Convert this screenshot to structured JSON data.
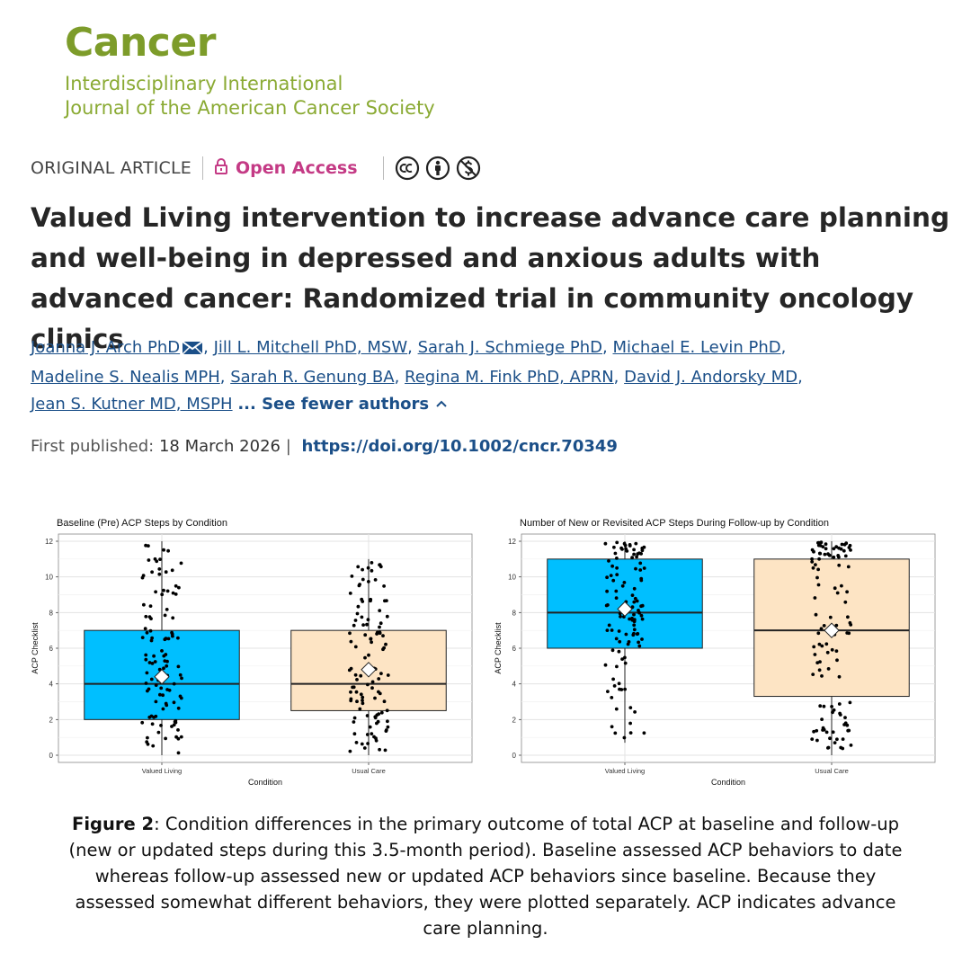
{
  "journal": {
    "name": "Cancer",
    "subtitle_line1": "Interdisciplinary International",
    "subtitle_line2": "Journal of the American Cancer Society"
  },
  "article_meta": {
    "type": "ORIGINAL ARTICLE",
    "access": "Open Access",
    "license_icons": [
      "cc-icon",
      "attribution-icon",
      "noncommercial-icon"
    ]
  },
  "article": {
    "title": "Valued Living intervention to increase advance care planning and well-being in depressed and anxious adults with advanced cancer: Randomized trial in community oncology clinics",
    "authors": [
      "Joanna J. Arch PhD",
      "Jill L. Mitchell PhD, MSW",
      "Sarah J. Schmiege PhD",
      "Michael E. Levin PhD",
      "Madeline S. Nealis MPH",
      "Sarah R. Genung BA",
      "Regina M. Fink PhD, APRN",
      "David J. Andorsky MD",
      "Jean S. Kutner MD, MSPH"
    ],
    "see_fewer": "... See fewer authors",
    "first_published_label": "First published:",
    "first_published_date": "18 March 2026",
    "doi": "https://doi.org/10.1002/cncr.70349"
  },
  "colors": {
    "journal_green": "#7d9c2a",
    "open_access": "#c43a85",
    "link_blue": "#1b4f88",
    "valued_living_box": "#00bfff",
    "usual_care_box": "#fde4c4"
  },
  "chart_data": [
    {
      "type": "box",
      "title": "Baseline (Pre) ACP Steps by Condition",
      "xlabel": "Condition",
      "ylabel": "ACP Checklist",
      "ylim": [
        0,
        12
      ],
      "yticks": [
        0,
        2,
        4,
        6,
        8,
        10,
        12
      ],
      "categories": [
        "Valued Living",
        "Usual Care"
      ],
      "boxes": [
        {
          "name": "Valued Living",
          "min": 0,
          "q1": 2,
          "median": 4,
          "q3": 7,
          "max": 12,
          "mean": 4.4,
          "color": "#00bfff"
        },
        {
          "name": "Usual Care",
          "min": 0,
          "q1": 2.5,
          "median": 4,
          "q3": 7,
          "max": 11,
          "mean": 4.8,
          "color": "#fde4c4"
        }
      ],
      "grid": true,
      "jitter_points": true
    },
    {
      "type": "box",
      "title": "Number of New or Revisited ACP Steps During Follow-up by Condition",
      "xlabel": "Condition",
      "ylabel": "ACP Checklist",
      "ylim": [
        0,
        12
      ],
      "yticks": [
        0,
        2,
        4,
        6,
        8,
        10,
        12
      ],
      "categories": [
        "Valued Living",
        "Usual Care"
      ],
      "boxes": [
        {
          "name": "Valued Living",
          "min": 0.7,
          "q1": 6,
          "median": 8,
          "q3": 11,
          "max": 12,
          "mean": 8.2,
          "color": "#00bfff"
        },
        {
          "name": "Usual Care",
          "min": 0,
          "q1": 3.3,
          "median": 7,
          "q3": 11,
          "max": 12,
          "mean": 7.0,
          "color": "#fde4c4"
        }
      ],
      "grid": true,
      "jitter_points": true
    }
  ],
  "caption": {
    "label": "Figure 2",
    "text": ": Condition differences in the primary outcome of total ACP at baseline and follow-up (new or updated steps during this 3.5-month period). Baseline assessed ACP behaviors to date whereas follow-up assessed new or updated ACP behaviors since baseline. Because they assessed somewhat different behaviors, they were plotted separately. ACP indicates advance care planning."
  }
}
